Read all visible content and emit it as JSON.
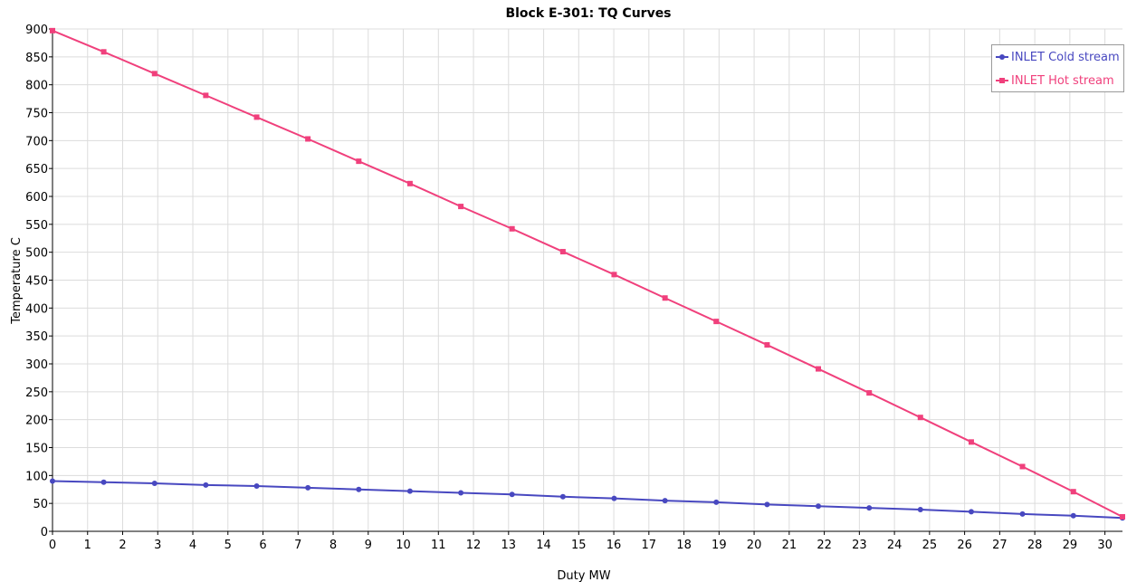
{
  "chart_data": {
    "type": "line",
    "title": "Block E-301: TQ Curves",
    "xlabel": "Duty MW",
    "ylabel": "Temperature C",
    "xlim": [
      0,
      30.5
    ],
    "ylim": [
      0,
      900
    ],
    "xticks": [
      0,
      1,
      2,
      3,
      4,
      5,
      6,
      7,
      8,
      9,
      10,
      11,
      12,
      13,
      14,
      15,
      16,
      17,
      18,
      19,
      20,
      21,
      22,
      23,
      24,
      25,
      26,
      27,
      28,
      29,
      30
    ],
    "yticks": [
      0,
      50,
      100,
      150,
      200,
      250,
      300,
      350,
      400,
      450,
      500,
      550,
      600,
      650,
      700,
      750,
      800,
      850,
      900
    ],
    "grid": true,
    "legend_position": "top-right",
    "series": [
      {
        "name": "INLET Cold stream",
        "color": "#4848c0",
        "marker": "circle",
        "x": [
          0,
          1.46,
          2.91,
          4.37,
          5.82,
          7.28,
          8.73,
          10.19,
          11.64,
          13.1,
          14.55,
          16.01,
          17.46,
          18.92,
          20.37,
          21.83,
          23.28,
          24.74,
          26.19,
          27.65,
          29.1,
          30.5
        ],
        "y": [
          90,
          88,
          86,
          83,
          81,
          78,
          75,
          72,
          69,
          66,
          62,
          59,
          55,
          52,
          48,
          45,
          42,
          39,
          35,
          31,
          28,
          24
        ]
      },
      {
        "name": "INLET Hot stream",
        "color": "#f0407c",
        "marker": "square",
        "x": [
          0,
          1.46,
          2.91,
          4.37,
          5.82,
          7.28,
          8.73,
          10.19,
          11.64,
          13.1,
          14.55,
          16.01,
          17.46,
          18.92,
          20.37,
          21.83,
          23.28,
          24.74,
          26.19,
          27.65,
          29.1,
          30.5
        ],
        "y": [
          897,
          859,
          820,
          781,
          742,
          703,
          663,
          623,
          582,
          542,
          501,
          460,
          418,
          376,
          334,
          291,
          248,
          204,
          160,
          116,
          71,
          26
        ]
      }
    ]
  }
}
